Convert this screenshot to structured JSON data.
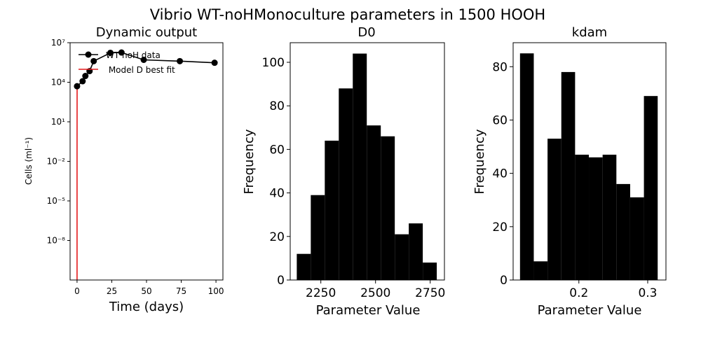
{
  "figure": {
    "suptitle": "Vibrio WT-noHMonoculture parameters in 1500 HOOH"
  },
  "chart_data": [
    {
      "type": "line",
      "title": "Dynamic output",
      "xlabel": "Time (days)",
      "ylabel": "Cells (ml⁻¹)",
      "yscale": "log",
      "xlim": [
        -5,
        105
      ],
      "ylim_log10": [
        -11,
        7
      ],
      "xticks": [
        0,
        25,
        50,
        75,
        100
      ],
      "yticks_log10": [
        -8,
        -5,
        -2,
        1,
        4,
        7
      ],
      "ytick_labels": [
        "10⁻⁸",
        "10⁻⁵",
        "10⁻²",
        "10¹",
        "10⁴",
        "10⁷"
      ],
      "legend_position": "top-left",
      "series": [
        {
          "name": "WT noH data",
          "color": "#000000",
          "marker": "circle",
          "x": [
            0,
            4,
            6,
            9,
            12,
            24,
            32,
            48,
            74,
            99
          ],
          "y": [
            5000,
            12000,
            30000,
            70000,
            400000,
            1700000,
            1800000,
            500000,
            400000,
            300000
          ]
        },
        {
          "name": "Model D best fit",
          "color": "#e41a1c",
          "x": [
            0,
            0,
            0.05
          ],
          "y": [
            1e-12,
            0.05,
            6000
          ]
        }
      ]
    },
    {
      "type": "bar",
      "title": "D0",
      "xlabel": "Parameter Value",
      "ylabel": "Frequency",
      "xlim": [
        2110,
        2815
      ],
      "ylim": [
        0,
        109
      ],
      "xticks": [
        2250,
        2500,
        2750
      ],
      "yticks": [
        0,
        20,
        40,
        60,
        80,
        100
      ],
      "bin_edges": [
        2140,
        2204,
        2268,
        2332,
        2396,
        2460,
        2524,
        2588,
        2652,
        2716,
        2780
      ],
      "values": [
        12,
        39,
        64,
        88,
        104,
        71,
        66,
        21,
        26,
        8
      ]
    },
    {
      "type": "bar",
      "title": "kdam",
      "xlabel": "Parameter Value",
      "ylabel": "Frequency",
      "xlim": [
        0.1045,
        0.3265
      ],
      "ylim": [
        0,
        89
      ],
      "xticks": [
        0.2,
        0.3
      ],
      "yticks": [
        0,
        20,
        40,
        60,
        80
      ],
      "bin_edges": [
        0.1145,
        0.1345,
        0.1545,
        0.1745,
        0.1945,
        0.2145,
        0.2345,
        0.2545,
        0.2745,
        0.2945,
        0.3145
      ],
      "values": [
        85,
        7,
        53,
        78,
        47,
        46,
        47,
        36,
        31,
        69
      ]
    }
  ]
}
